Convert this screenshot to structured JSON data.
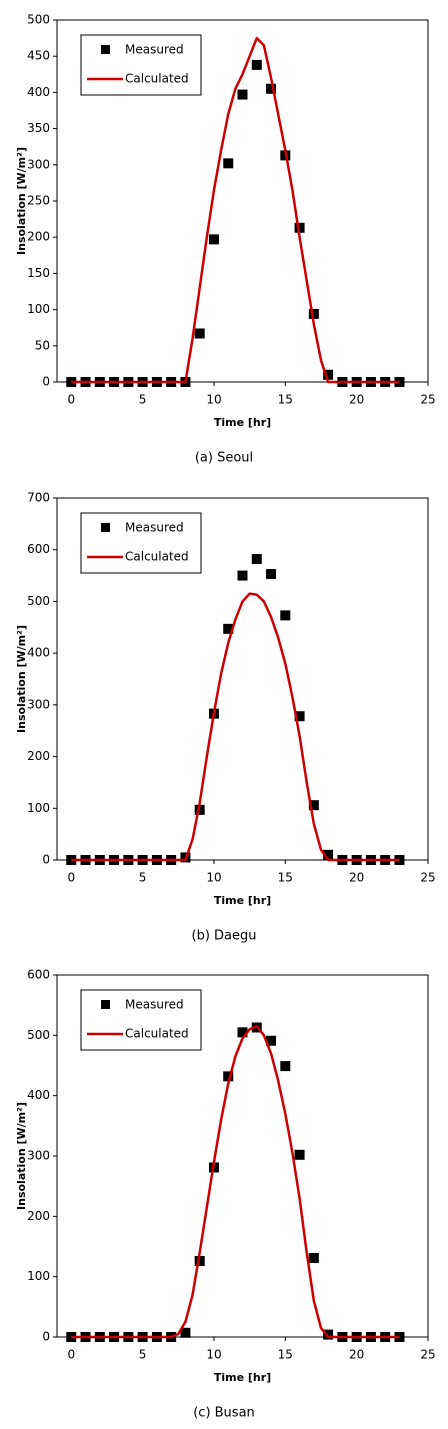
{
  "chart_data": [
    {
      "type": "line",
      "caption": "(a) Seoul",
      "x_label": "Time [hr]",
      "y_label": "Insolation [W/m²]",
      "xlim": [
        -1,
        25
      ],
      "xticks": [
        0,
        5,
        10,
        15,
        20,
        25
      ],
      "ylim": [
        0,
        500
      ],
      "yticks": [
        0,
        50,
        100,
        150,
        200,
        250,
        300,
        350,
        400,
        450,
        500
      ],
      "legend": "top-left",
      "series": [
        {
          "name": "Measured",
          "kind": "scatter",
          "color": "#000000",
          "x": [
            0,
            1,
            2,
            3,
            4,
            5,
            6,
            7,
            8,
            9,
            10,
            11,
            12,
            13,
            14,
            15,
            16,
            17,
            18,
            19,
            20,
            21,
            22,
            23
          ],
          "values": [
            0,
            0,
            0,
            0,
            0,
            0,
            0,
            0,
            0,
            67,
            197,
            302,
            397,
            438,
            405,
            313,
            213,
            94,
            10,
            0,
            0,
            0,
            0,
            0
          ]
        },
        {
          "name": "Calculated",
          "kind": "line",
          "color": "#cc0000",
          "x": [
            0,
            8,
            8.5,
            9,
            9.5,
            10,
            10.5,
            11,
            11.5,
            12,
            12.5,
            13,
            13.5,
            14,
            14.5,
            15,
            15.5,
            16,
            16.5,
            17,
            17.5,
            18,
            23
          ],
          "values": [
            0,
            0,
            60,
            130,
            200,
            265,
            320,
            370,
            405,
            425,
            450,
            475,
            465,
            420,
            370,
            320,
            265,
            200,
            140,
            80,
            30,
            0,
            0
          ]
        }
      ]
    },
    {
      "type": "line",
      "caption": "(b) Daegu",
      "x_label": "Time [hr]",
      "y_label": "Insolation [W/m²]",
      "xlim": [
        -1,
        25
      ],
      "xticks": [
        0,
        5,
        10,
        15,
        20,
        25
      ],
      "ylim": [
        0,
        700
      ],
      "yticks": [
        0,
        100,
        200,
        300,
        400,
        500,
        600,
        700
      ],
      "legend": "top-left",
      "series": [
        {
          "name": "Measured",
          "kind": "scatter",
          "color": "#000000",
          "x": [
            0,
            1,
            2,
            3,
            4,
            5,
            6,
            7,
            8,
            9,
            10,
            11,
            12,
            13,
            14,
            15,
            16,
            17,
            18,
            19,
            20,
            21,
            22,
            23
          ],
          "values": [
            0,
            0,
            0,
            0,
            0,
            0,
            0,
            0,
            5,
            97,
            283,
            447,
            550,
            582,
            553,
            473,
            278,
            106,
            10,
            0,
            0,
            0,
            0,
            0
          ]
        },
        {
          "name": "Calculated",
          "kind": "line",
          "color": "#cc0000",
          "x": [
            0,
            8,
            8.5,
            9,
            9.5,
            10,
            10.5,
            11,
            11.5,
            12,
            12.5,
            13,
            13.5,
            14,
            14.5,
            15,
            15.5,
            16,
            16.5,
            17,
            17.5,
            18,
            23
          ],
          "values": [
            0,
            0,
            40,
            110,
            200,
            285,
            360,
            420,
            465,
            500,
            515,
            513,
            500,
            470,
            430,
            380,
            315,
            240,
            150,
            70,
            20,
            0,
            0
          ]
        }
      ]
    },
    {
      "type": "line",
      "caption": "(c) Busan",
      "x_label": "Time [hr]",
      "y_label": "Insolation [W/m²]",
      "xlim": [
        -1,
        25
      ],
      "xticks": [
        0,
        5,
        10,
        15,
        20,
        25
      ],
      "ylim": [
        0,
        600
      ],
      "yticks": [
        0,
        100,
        200,
        300,
        400,
        500,
        600
      ],
      "legend": "top-left",
      "series": [
        {
          "name": "Measured",
          "kind": "scatter",
          "color": "#000000",
          "x": [
            0,
            1,
            2,
            3,
            4,
            5,
            6,
            7,
            8,
            9,
            10,
            11,
            12,
            13,
            14,
            15,
            16,
            17,
            18,
            19,
            20,
            21,
            22,
            23
          ],
          "values": [
            0,
            0,
            0,
            0,
            0,
            0,
            0,
            0,
            7,
            126,
            281,
            432,
            505,
            513,
            491,
            449,
            302,
            131,
            4,
            0,
            0,
            0,
            0,
            0
          ]
        },
        {
          "name": "Calculated",
          "kind": "line",
          "color": "#cc0000",
          "x": [
            0,
            7,
            7.5,
            8,
            8.5,
            9,
            9.5,
            10,
            10.5,
            11,
            11.5,
            12,
            12.5,
            13,
            13.5,
            14,
            14.5,
            15,
            15.5,
            16,
            16.5,
            17,
            17.5,
            18,
            23
          ],
          "values": [
            0,
            0,
            5,
            25,
            70,
            140,
            215,
            290,
            360,
            420,
            465,
            495,
            510,
            515,
            500,
            470,
            425,
            370,
            305,
            230,
            140,
            60,
            15,
            0,
            0
          ]
        }
      ]
    }
  ]
}
